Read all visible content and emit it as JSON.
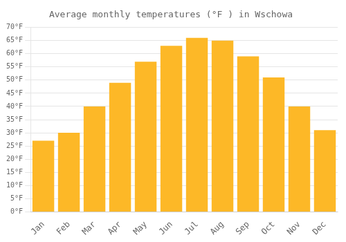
{
  "chart_data": {
    "type": "bar",
    "title": "Average monthly temperatures (°F ) in Wschowa",
    "categories": [
      "Jan",
      "Feb",
      "Mar",
      "Apr",
      "May",
      "Jun",
      "Jul",
      "Aug",
      "Sep",
      "Oct",
      "Nov",
      "Dec"
    ],
    "values": [
      27,
      30,
      40,
      49,
      57,
      63,
      66,
      65,
      59,
      51,
      40,
      31
    ],
    "color": "#FDB827",
    "ylim": [
      0,
      70
    ],
    "yticks": [
      {
        "value": 0,
        "label": "0°F"
      },
      {
        "value": 5,
        "label": "5°F"
      },
      {
        "value": 10,
        "label": "10°F"
      },
      {
        "value": 15,
        "label": "15°F"
      },
      {
        "value": 20,
        "label": "20°F"
      },
      {
        "value": 25,
        "label": "25°F"
      },
      {
        "value": 30,
        "label": "30°F"
      },
      {
        "value": 35,
        "label": "35°F"
      },
      {
        "value": 40,
        "label": "40°F"
      },
      {
        "value": 45,
        "label": "45°F"
      },
      {
        "value": 50,
        "label": "50°F"
      },
      {
        "value": 55,
        "label": "55°F"
      },
      {
        "value": 60,
        "label": "60°F"
      },
      {
        "value": 65,
        "label": "65°F"
      },
      {
        "value": 70,
        "label": "70°F"
      }
    ],
    "grid": true
  }
}
